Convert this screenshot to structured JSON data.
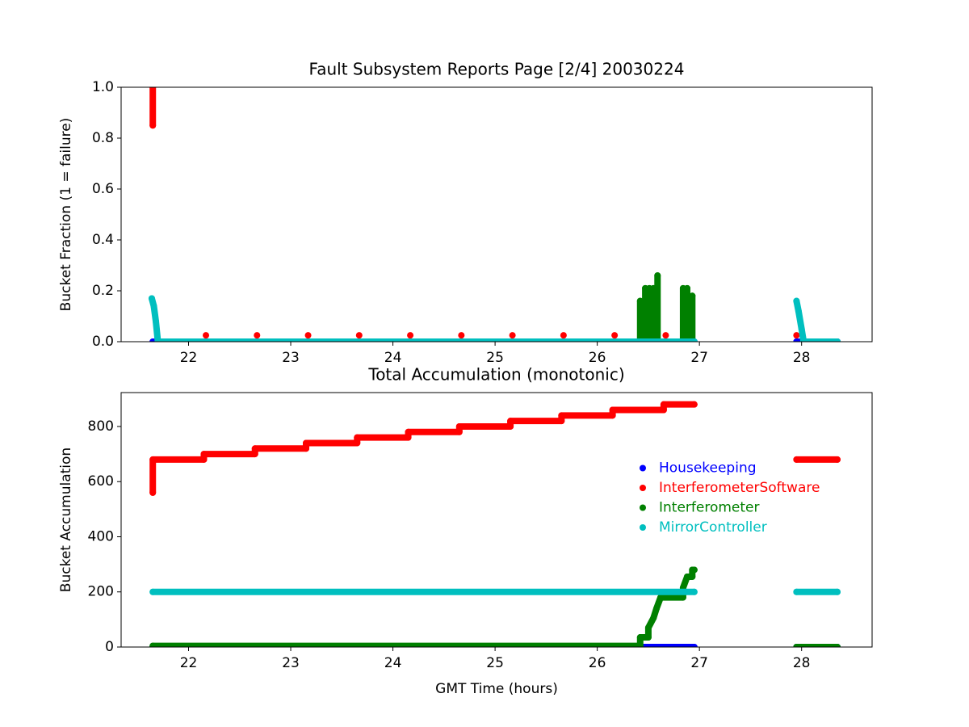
{
  "chart_data": [
    {
      "type": "scatter",
      "title": "Fault Subsystem Reports Page [2/4] 20030224",
      "y_label": "Bucket Fraction (1 = failure)",
      "xlim": [
        21.34,
        28.69
      ],
      "xticks": [
        22,
        23,
        24,
        25,
        26,
        27,
        28
      ],
      "ylim": [
        0,
        1
      ],
      "yticks": [
        {
          "value": 0,
          "label": "0.0"
        },
        {
          "value": 0.2,
          "label": "0.2"
        },
        {
          "value": 0.4,
          "label": "0.4"
        },
        {
          "value": 0.6,
          "label": "0.6"
        },
        {
          "value": 0.8,
          "label": "0.8"
        },
        {
          "value": 1,
          "label": "1.0"
        }
      ],
      "series": [
        {
          "name": "Housekeeping",
          "color": "#0000ff",
          "x": [
            21.65,
            26.95,
            null,
            27.95,
            28.35
          ],
          "values": [
            0,
            0,
            null,
            0,
            0
          ]
        },
        {
          "name": "InterferometerSoftware",
          "color": "#ff0000",
          "x": [
            21.65,
            21.65,
            null,
            22.17,
            null,
            22.67,
            null,
            23.17,
            null,
            23.67,
            null,
            24.17,
            null,
            24.67,
            null,
            25.17,
            null,
            25.67,
            null,
            26.17,
            null,
            26.67,
            null,
            27.95
          ],
          "values": [
            0.85,
            1.0,
            null,
            0.025,
            null,
            0.025,
            null,
            0.025,
            null,
            0.025,
            null,
            0.025,
            null,
            0.025,
            null,
            0.025,
            null,
            0.025,
            null,
            0.025,
            null,
            0.025,
            null,
            0.025
          ]
        },
        {
          "name": "Interferometer",
          "color": "#008000",
          "x": [
            26.42,
            26.42,
            null,
            26.47,
            26.47,
            null,
            26.51,
            26.51,
            null,
            26.55,
            26.55,
            null,
            26.59,
            26.59,
            null,
            26.84,
            26.84,
            null,
            26.88,
            26.88,
            null,
            26.93,
            26.93
          ],
          "values": [
            0,
            0.16,
            null,
            0,
            0.21,
            null,
            0,
            0.21,
            null,
            0,
            0.21,
            null,
            0,
            0.26,
            null,
            0,
            0.21,
            null,
            0,
            0.21,
            null,
            0,
            0.18
          ]
        },
        {
          "name": "MirrorController",
          "color": "#00bfbf",
          "x": [
            21.64,
            21.66,
            21.68,
            21.7,
            26.95,
            null,
            27.95,
            27.97,
            28.0,
            28.02,
            28.35
          ],
          "values": [
            0.17,
            0.14,
            0.08,
            0,
            0,
            null,
            0.16,
            0.12,
            0.05,
            0,
            0
          ]
        }
      ]
    },
    {
      "type": "scatter",
      "title": "Total Accumulation (monotonic)",
      "y_label": "Bucket Accumulation",
      "x_label": "GMT Time (hours)",
      "legend": "center right",
      "xlim": [
        21.34,
        28.69
      ],
      "xticks": [
        22,
        23,
        24,
        25,
        26,
        27,
        28
      ],
      "ylim": [
        0,
        923
      ],
      "yticks": [
        0,
        200,
        400,
        600,
        800
      ],
      "series": [
        {
          "name": "Housekeeping",
          "color": "#0000ff",
          "x": [
            21.65,
            26.95,
            null,
            27.95,
            28.35
          ],
          "values": [
            0,
            0,
            null,
            0,
            0
          ]
        },
        {
          "name": "InterferometerSoftware",
          "color": "#ff0000",
          "x": [
            21.65,
            21.65,
            22.15,
            22.15,
            22.65,
            22.65,
            23.15,
            23.15,
            23.65,
            23.65,
            24.15,
            24.15,
            24.65,
            24.65,
            25.15,
            25.15,
            25.65,
            25.65,
            26.15,
            26.15,
            26.65,
            26.65,
            26.95,
            null,
            27.95,
            28.35
          ],
          "values": [
            560,
            680,
            680,
            700,
            700,
            720,
            720,
            740,
            740,
            760,
            760,
            780,
            780,
            800,
            800,
            820,
            820,
            840,
            840,
            860,
            860,
            880,
            880,
            null,
            680,
            680
          ]
        },
        {
          "name": "Interferometer",
          "color": "#008000",
          "x": [
            21.65,
            26.42,
            26.42,
            26.5,
            26.5,
            26.55,
            26.58,
            26.62,
            26.84,
            26.84,
            26.88,
            26.93,
            26.93,
            26.95,
            null,
            27.95,
            28.35
          ],
          "values": [
            4,
            4,
            35,
            35,
            70,
            105,
            140,
            180,
            180,
            215,
            255,
            255,
            280,
            280,
            null,
            0,
            0
          ]
        },
        {
          "name": "MirrorController",
          "color": "#00bfbf",
          "x": [
            21.65,
            26.95,
            null,
            27.95,
            28.35
          ],
          "values": [
            200,
            200,
            null,
            200,
            200
          ]
        }
      ]
    }
  ]
}
